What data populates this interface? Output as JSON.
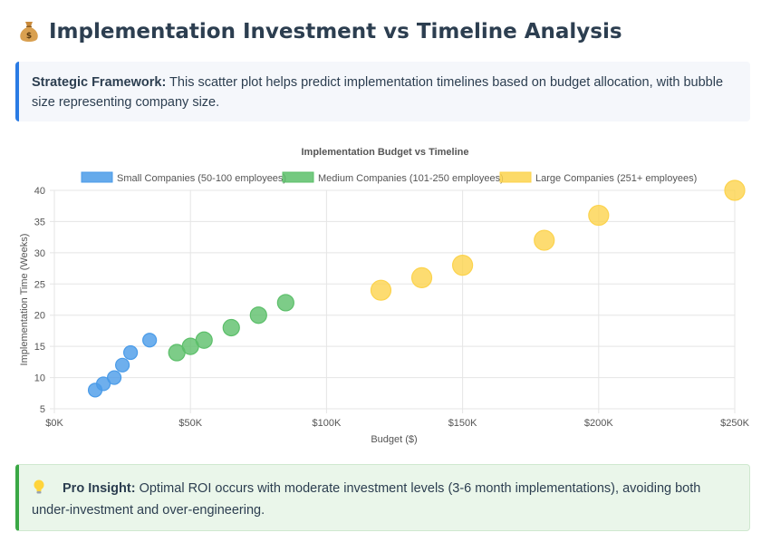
{
  "header": {
    "title": "Implementation Investment vs Timeline Analysis",
    "icon": "money-bag-icon"
  },
  "framework": {
    "label": "Strategic Framework:",
    "text": " This scatter plot helps predict implementation timelines based on budget allocation, with bubble size representing company size."
  },
  "insight": {
    "icon": "light-bulb-icon",
    "label": "Pro Insight:",
    "text": " Optimal ROI occurs with moderate investment levels (3-6 month implementations), avoiding both under-investment and over-engineering."
  },
  "colors": {
    "small": "#4a9be8",
    "medium": "#5cbf6a",
    "large": "#fcd34d",
    "framework_accent": "#2a7be4",
    "insight_accent": "#3aa845"
  },
  "chart_data": {
    "type": "scatter",
    "title": "Implementation Budget vs Timeline",
    "xlabel": "Budget ($)",
    "ylabel": "Implementation Time (Weeks)",
    "xlim": [
      0,
      250000
    ],
    "ylim": [
      5,
      40
    ],
    "x_ticks": [
      0,
      50000,
      100000,
      150000,
      200000,
      250000
    ],
    "x_tick_labels": [
      "$0K",
      "$50K",
      "$100K",
      "$150K",
      "$200K",
      "$250K"
    ],
    "y_ticks": [
      5,
      10,
      15,
      20,
      25,
      30,
      35,
      40
    ],
    "y_tick_labels": [
      "5",
      "10",
      "15",
      "20",
      "25",
      "30",
      "35",
      "40"
    ],
    "grid": true,
    "legend_position": "top",
    "series": [
      {
        "name": "Small Companies (50-100 employees)",
        "color": "#4a9be8",
        "bubble_size": "small",
        "points": [
          {
            "x": 15000,
            "y": 8
          },
          {
            "x": 18000,
            "y": 9
          },
          {
            "x": 22000,
            "y": 10
          },
          {
            "x": 25000,
            "y": 12
          },
          {
            "x": 28000,
            "y": 14
          },
          {
            "x": 35000,
            "y": 16
          }
        ]
      },
      {
        "name": "Medium Companies (101-250 employees)",
        "color": "#5cbf6a",
        "bubble_size": "medium",
        "points": [
          {
            "x": 45000,
            "y": 14
          },
          {
            "x": 50000,
            "y": 15
          },
          {
            "x": 55000,
            "y": 16
          },
          {
            "x": 65000,
            "y": 18
          },
          {
            "x": 75000,
            "y": 20
          },
          {
            "x": 85000,
            "y": 22
          }
        ]
      },
      {
        "name": "Large Companies (251+ employees)",
        "color": "#fcd34d",
        "bubble_size": "large",
        "points": [
          {
            "x": 120000,
            "y": 24
          },
          {
            "x": 135000,
            "y": 26
          },
          {
            "x": 150000,
            "y": 28
          },
          {
            "x": 180000,
            "y": 32
          },
          {
            "x": 200000,
            "y": 36
          },
          {
            "x": 250000,
            "y": 40
          }
        ]
      }
    ]
  }
}
